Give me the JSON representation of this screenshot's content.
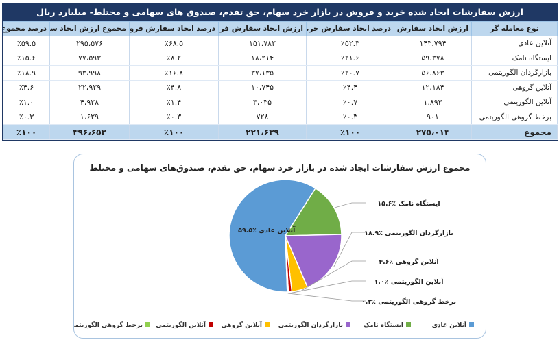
{
  "table": {
    "title": "ارزش سفارشات ایجاد شده خرید و فروش در بازار خرد سهام، حق تقدم، صندوق های سهامی و مختلط- میلیارد ریال",
    "headers": [
      "نوع معامله گر",
      "ارزش ایجاد سفارش خرید",
      "درصد ایجاد سفارش خرید",
      "ارزش ایجاد سفارش فروش",
      "درصد ایجاد سفارش فروش",
      "مجموع ارزش ایجاد سفارش",
      "درصد مجموع"
    ],
    "rows": [
      [
        "آنلاین عادی",
        "۱۴۳،۷۹۴",
        "٪۵۲.۳",
        "۱۵۱،۷۸۲",
        "٪۶۸.۵",
        "۲۹۵،۵۷۶",
        "٪۵۹.۵"
      ],
      [
        "ایستگاه نامک",
        "۵۹،۳۷۸",
        "٪۲۱.۶",
        "۱۸،۲۱۴",
        "٪۸.۲",
        "۷۷،۵۹۳",
        "٪۱۵.۶"
      ],
      [
        "بازارگردان الگوریتمی",
        "۵۶،۸۶۳",
        "٪۲۰.۷",
        "۳۷،۱۳۵",
        "٪۱۶.۸",
        "۹۳،۹۹۸",
        "٪۱۸.۹"
      ],
      [
        "آنلاین گروهی",
        "۱۲،۱۸۴",
        "٪۴.۴",
        "۱۰،۷۴۵",
        "٪۴.۸",
        "۲۲،۹۲۹",
        "٪۴.۶"
      ],
      [
        "آنلاین الگوریتمی",
        "۱،۸۹۳",
        "٪۰.۷",
        "۳،۰۳۵",
        "٪۱.۴",
        "۴،۹۲۸",
        "٪۱.۰"
      ],
      [
        "برخط گروهی الگوریتمی",
        "۹۰۱",
        "٪۰.۳",
        "۷۲۸",
        "٪۰.۳",
        "۱،۶۲۹",
        "٪۰.۳"
      ]
    ],
    "total": [
      "مجموع",
      "۲۷۵،۰۱۴",
      "٪۱۰۰",
      "۲۲۱،۶۳۹",
      "٪۱۰۰",
      "۴۹۶،۶۵۳",
      "٪۱۰۰"
    ]
  },
  "chart_data": {
    "type": "pie",
    "title": "مجموع ارزش سفارشات ایجاد شده در بازار خرد سهام، حق تقدم، صندوق‌های سهامی و مختلط",
    "legend_position": "bottom",
    "slices": [
      {
        "name": "آنلاین عادی",
        "value": 59.5,
        "label": "آنلاین عادی ٪۵۹.۵",
        "color": "#5b9bd5"
      },
      {
        "name": "ایستگاه نامک",
        "value": 15.6,
        "label": "ایستگاه نامک ٪۱۵.۶",
        "color": "#70ad47"
      },
      {
        "name": "بازارگردان الگوریتمی",
        "value": 18.9,
        "label": "بازارگردان الگوریتمی ٪۱۸.۹",
        "color": "#9966cc"
      },
      {
        "name": "آنلاین گروهی",
        "value": 4.6,
        "label": "آنلاین گروهی ٪۴.۶",
        "color": "#ffc000"
      },
      {
        "name": "آنلاین الگوریتمی",
        "value": 1.0,
        "label": "آنلاین الگوریتمی ٪۱.۰",
        "color": "#c00000"
      },
      {
        "name": "برخط گروهی الگوریتمی",
        "value": 0.3,
        "label": "برخط گروهی الگوریتمی ٪۰.۳",
        "color": "#92d050"
      }
    ]
  }
}
